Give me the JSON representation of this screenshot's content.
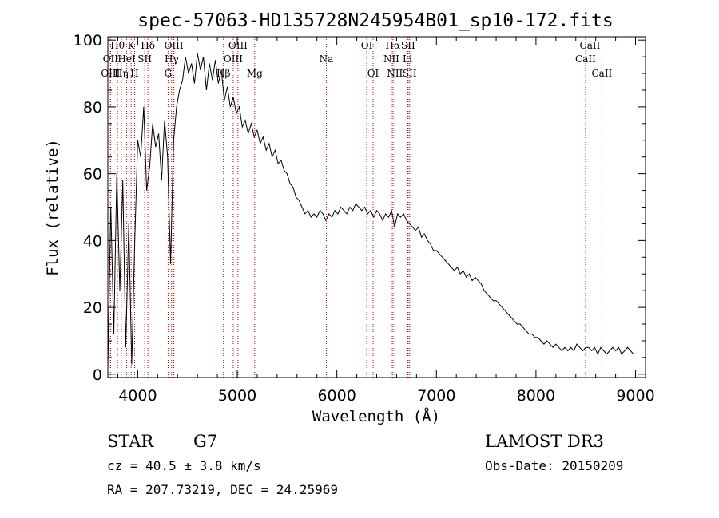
{
  "chart_data": {
    "type": "line",
    "title": "spec-57063-HD135728N245954B01_sp10-172.fits",
    "xlabel": "Wavelength (Å)",
    "ylabel": "Flux (relative)",
    "xlim": [
      3700,
      9100
    ],
    "ylim": [
      -1,
      101
    ],
    "xticks": [
      4000,
      5000,
      6000,
      7000,
      8000,
      9000
    ],
    "yticks": [
      0,
      20,
      40,
      60,
      80,
      100
    ],
    "series": [
      {
        "name": "spectrum",
        "x": [
          3700,
          3730,
          3760,
          3790,
          3820,
          3850,
          3880,
          3910,
          3940,
          3970,
          4000,
          4030,
          4060,
          4090,
          4120,
          4150,
          4180,
          4210,
          4240,
          4270,
          4300,
          4330,
          4360,
          4390,
          4420,
          4450,
          4480,
          4510,
          4540,
          4570,
          4600,
          4630,
          4660,
          4690,
          4720,
          4750,
          4780,
          4810,
          4840,
          4870,
          4900,
          4930,
          4960,
          4990,
          5020,
          5050,
          5080,
          5110,
          5140,
          5170,
          5200,
          5230,
          5260,
          5290,
          5320,
          5350,
          5380,
          5410,
          5440,
          5470,
          5500,
          5530,
          5560,
          5590,
          5620,
          5650,
          5680,
          5710,
          5740,
          5770,
          5800,
          5830,
          5860,
          5890,
          5920,
          5950,
          5980,
          6010,
          6040,
          6070,
          6100,
          6130,
          6160,
          6190,
          6220,
          6250,
          6280,
          6310,
          6340,
          6370,
          6400,
          6430,
          6460,
          6490,
          6520,
          6550,
          6580,
          6610,
          6640,
          6670,
          6700,
          6730,
          6760,
          6790,
          6820,
          6850,
          6880,
          6910,
          6940,
          6970,
          7000,
          7030,
          7060,
          7090,
          7120,
          7150,
          7180,
          7210,
          7240,
          7270,
          7300,
          7330,
          7360,
          7390,
          7420,
          7450,
          7480,
          7510,
          7540,
          7570,
          7600,
          7630,
          7660,
          7690,
          7720,
          7750,
          7780,
          7810,
          7840,
          7870,
          7900,
          7930,
          7960,
          7990,
          8020,
          8050,
          8080,
          8110,
          8140,
          8170,
          8200,
          8230,
          8260,
          8290,
          8320,
          8350,
          8380,
          8410,
          8440,
          8470,
          8500,
          8530,
          8560,
          8590,
          8620,
          8650,
          8680,
          8710,
          8740,
          8770,
          8800,
          8830,
          8860,
          8890,
          8920,
          8950,
          8980
        ],
        "y": [
          2,
          50,
          12,
          60,
          25,
          58,
          8,
          45,
          3,
          40,
          70,
          65,
          80,
          55,
          62,
          75,
          68,
          72,
          58,
          76,
          65,
          33,
          70,
          80,
          85,
          88,
          95,
          90,
          93,
          87,
          96,
          91,
          95,
          85,
          93,
          88,
          94,
          87,
          91,
          82,
          86,
          80,
          83,
          78,
          80,
          74,
          76,
          72,
          75,
          71,
          73,
          69,
          71,
          67,
          69,
          65,
          67,
          63,
          64,
          61,
          60,
          57,
          56,
          53,
          52,
          50,
          48,
          49,
          47,
          48,
          47,
          49,
          48,
          46,
          48,
          47,
          49,
          48,
          50,
          49,
          48,
          50,
          49,
          51,
          50,
          49,
          50,
          48,
          49,
          47,
          49,
          48,
          46,
          48,
          47,
          49,
          44,
          48,
          47,
          48,
          46,
          45,
          44,
          43,
          44,
          41,
          42,
          40,
          39,
          37,
          37,
          36,
          35,
          34,
          33,
          32,
          31,
          32,
          30,
          31,
          29,
          30,
          28,
          29,
          28,
          27,
          25,
          24,
          23,
          22,
          22,
          21,
          20,
          19,
          18,
          17,
          16,
          15,
          15,
          14,
          13,
          12,
          12,
          11,
          11,
          10,
          9,
          10,
          9,
          8,
          9,
          8,
          7,
          8,
          7,
          8,
          7,
          9,
          8,
          7,
          8,
          8,
          7,
          8,
          6,
          8,
          7,
          6,
          7,
          8,
          7,
          8,
          6,
          7,
          8,
          7,
          6
        ]
      }
    ],
    "line_markers": [
      {
        "label": "Hθ",
        "x": 3797,
        "row": 1
      },
      {
        "label": "OII",
        "x": 3727,
        "row": 2
      },
      {
        "label": "OIII",
        "x": 3727,
        "row": 3
      },
      {
        "label": "K",
        "x": 3934,
        "row": 1
      },
      {
        "label": "HeI",
        "x": 3889,
        "row": 2
      },
      {
        "label": "Hη",
        "x": 3835,
        "row": 3
      },
      {
        "label": "Hδ",
        "x": 4102,
        "row": 1
      },
      {
        "label": "SII",
        "x": 4070,
        "row": 2
      },
      {
        "label": "H",
        "x": 3969,
        "row": 3
      },
      {
        "label": "OIII",
        "x": 4363,
        "row": 1
      },
      {
        "label": "Hγ",
        "x": 4340,
        "row": 2
      },
      {
        "label": "G",
        "x": 4305,
        "row": 3
      },
      {
        "label": "OIII",
        "x": 5007,
        "row": 1
      },
      {
        "label": "OIII",
        "x": 4959,
        "row": 2
      },
      {
        "label": "Hβ",
        "x": 4861,
        "row": 3
      },
      {
        "label": "Mg",
        "x": 5175,
        "row": 3
      },
      {
        "label": "Na",
        "x": 5894,
        "row": 2
      },
      {
        "label": "OI",
        "x": 6300,
        "row": 1
      },
      {
        "label": "OI",
        "x": 6364,
        "row": 3
      },
      {
        "label": "Hα",
        "x": 6563,
        "row": 1
      },
      {
        "label": "NII",
        "x": 6548,
        "row": 2
      },
      {
        "label": "NII",
        "x": 6583,
        "row": 3
      },
      {
        "label": "SII",
        "x": 6716,
        "row": 1
      },
      {
        "label": "Li",
        "x": 6708,
        "row": 2
      },
      {
        "label": "SII",
        "x": 6731,
        "row": 3
      },
      {
        "label": "CaII",
        "x": 8542,
        "row": 1
      },
      {
        "label": "CaII",
        "x": 8498,
        "row": 2
      },
      {
        "label": "CaII",
        "x": 8662,
        "row": 3
      }
    ]
  },
  "info": {
    "object_class": "STAR",
    "subclass": "G7",
    "survey": "LAMOST DR3",
    "cz": "cz = 40.5 ± 3.8 km/s",
    "obs_date": "Obs-Date: 20150209",
    "coords": "RA = 207.73219, DEC =  24.25969"
  }
}
